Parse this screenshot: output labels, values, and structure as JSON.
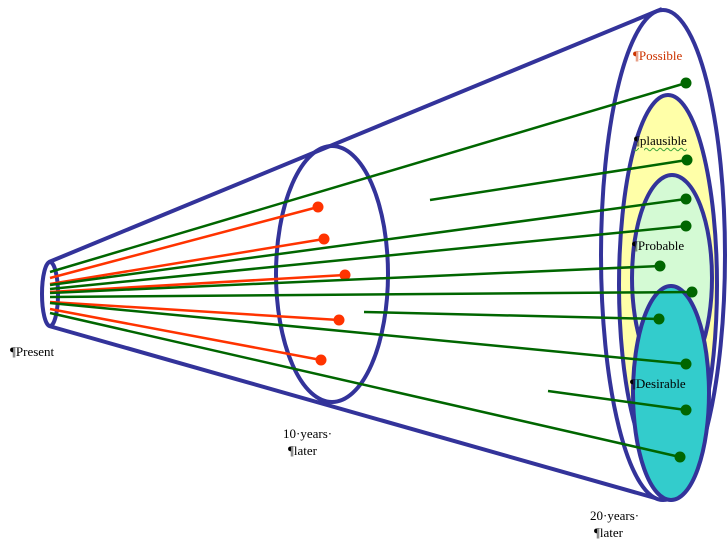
{
  "labels": {
    "present": "¶Present",
    "ten_years_line1": "10·years·",
    "ten_years_line2": "¶later",
    "twenty_years_line1": "20·years·",
    "twenty_years_line2": "¶later",
    "possible": "¶Possible",
    "plausible": "¶plausible",
    "probable": "¶Probable",
    "desirable": "¶Desirable"
  },
  "colors": {
    "outline": "#33339a",
    "possible_fill": "#ffffff",
    "plausible_fill": "#ffffa8",
    "probable_fill": "#d4fad4",
    "desirable_fill": "#33cccc",
    "green_line": "#006600",
    "red_line": "#ff3300",
    "possible_text": "#cc3300"
  }
}
